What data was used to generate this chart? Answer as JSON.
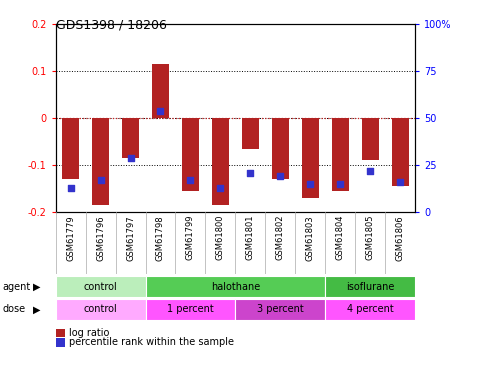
{
  "title": "GDS1398 / 18206",
  "samples": [
    "GSM61779",
    "GSM61796",
    "GSM61797",
    "GSM61798",
    "GSM61799",
    "GSM61800",
    "GSM61801",
    "GSM61802",
    "GSM61803",
    "GSM61804",
    "GSM61805",
    "GSM61806"
  ],
  "log_ratios": [
    -0.13,
    -0.185,
    -0.085,
    0.115,
    -0.155,
    -0.185,
    -0.065,
    -0.13,
    -0.17,
    -0.155,
    -0.09,
    -0.145
  ],
  "percentile_ranks": [
    13,
    17,
    29,
    54,
    17,
    13,
    21,
    19,
    15,
    15,
    22,
    16
  ],
  "bar_color": "#B22222",
  "dot_color": "#3333CC",
  "ylim_left": [
    -0.2,
    0.2
  ],
  "ylim_right": [
    0,
    100
  ],
  "yticks_left": [
    -0.2,
    -0.1,
    0.0,
    0.1,
    0.2
  ],
  "ytick_labels_left": [
    "-0.2",
    "-0.1",
    "0",
    "0.1",
    "0.2"
  ],
  "yticks_right": [
    0,
    25,
    50,
    75,
    100
  ],
  "ytick_labels_right": [
    "0",
    "25",
    "50",
    "75",
    "100%"
  ],
  "agent_groups": [
    {
      "label": "control",
      "start": 0,
      "end": 3,
      "color": "#BBEEBB"
    },
    {
      "label": "halothane",
      "start": 3,
      "end": 9,
      "color": "#55CC55"
    },
    {
      "label": "isoflurane",
      "start": 9,
      "end": 12,
      "color": "#44BB44"
    }
  ],
  "dose_groups": [
    {
      "label": "control",
      "start": 0,
      "end": 3,
      "color": "#FFAAFF"
    },
    {
      "label": "1 percent",
      "start": 3,
      "end": 6,
      "color": "#FF55FF"
    },
    {
      "label": "3 percent",
      "start": 6,
      "end": 9,
      "color": "#CC44CC"
    },
    {
      "label": "4 percent",
      "start": 9,
      "end": 12,
      "color": "#FF55FF"
    }
  ],
  "label_agent": "agent",
  "label_dose": "dose",
  "legend_log_ratio": "log ratio",
  "legend_percentile": "percentile rank within the sample",
  "bar_width": 0.55,
  "title_fontsize": 9,
  "tick_fontsize": 7,
  "label_fontsize": 7,
  "sample_fontsize": 6
}
